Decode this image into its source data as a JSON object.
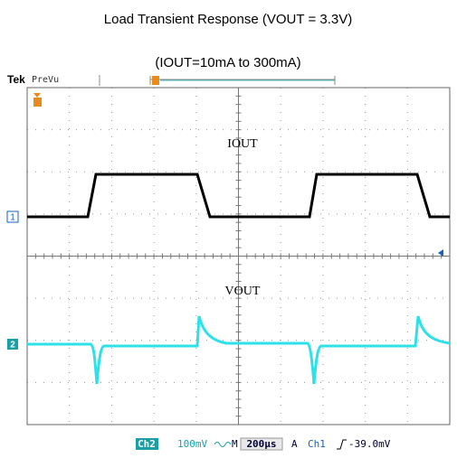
{
  "header": {
    "title": "Load Transient Response (VOUT = 3.3V)",
    "subtitle": "(IOUT=10mA to 300mA)"
  },
  "scope": {
    "brand": "Tek",
    "mode": "PreVu",
    "traces": [
      {
        "label": "IOUT",
        "channel": "1"
      },
      {
        "label": "VOUT",
        "channel": "2"
      }
    ],
    "status": {
      "channel": "Ch2",
      "scale": "100mV",
      "timebase_prefix": "M",
      "timebase": "200µs",
      "trigger_mode": "A",
      "trigger_source": "Ch1",
      "trigger_level": "-39.0mV"
    }
  }
}
